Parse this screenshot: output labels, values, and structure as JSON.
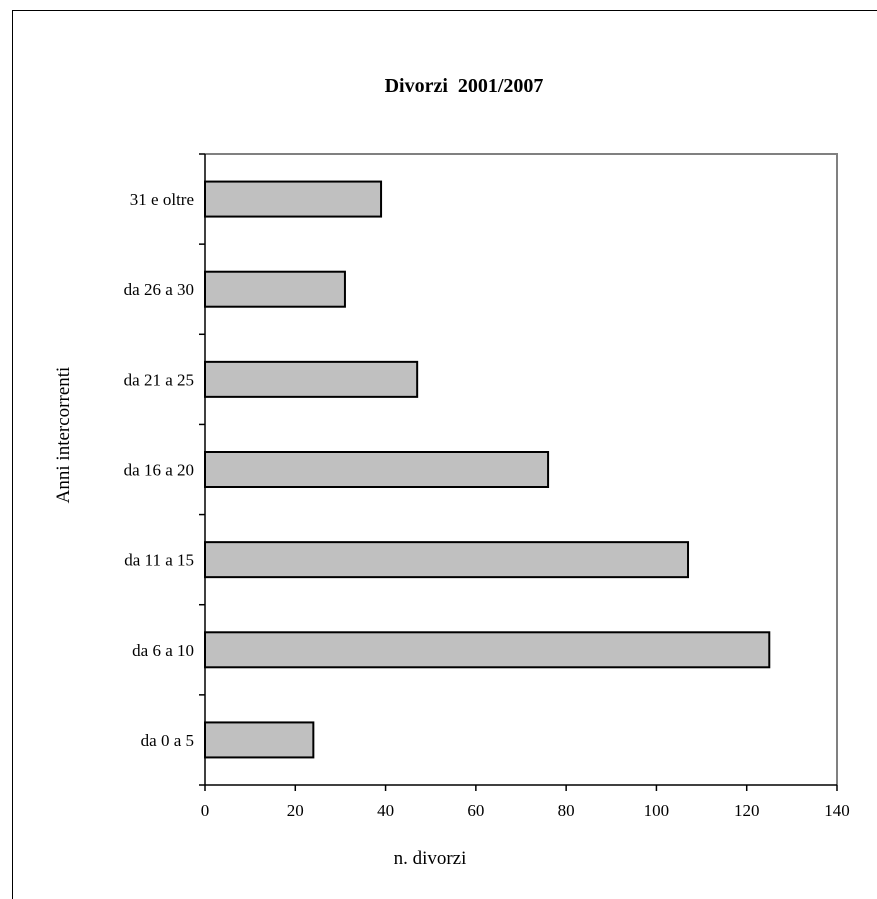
{
  "chart_data": {
    "type": "bar",
    "orientation": "horizontal",
    "title": "Divorzi  2001/2007",
    "xlabel": "n. divorzi",
    "ylabel": "Anni intercorrenti",
    "categories": [
      "da 0 a 5",
      "da 6 a 10",
      "da 11 a 15",
      "da 16 a 20",
      "da 21 a 25",
      "da 26 a 30",
      "31 e oltre"
    ],
    "values": [
      24,
      125,
      107,
      76,
      47,
      31,
      39
    ],
    "xlim": [
      0,
      140
    ],
    "xticks": [
      "0",
      "20",
      "40",
      "60",
      "80",
      "100",
      "120",
      "140"
    ],
    "grid": false,
    "legend": "none",
    "colors": {
      "bar_fill": "#c0c0c0",
      "bar_stroke": "#000000",
      "plot_border": "#808080"
    }
  }
}
